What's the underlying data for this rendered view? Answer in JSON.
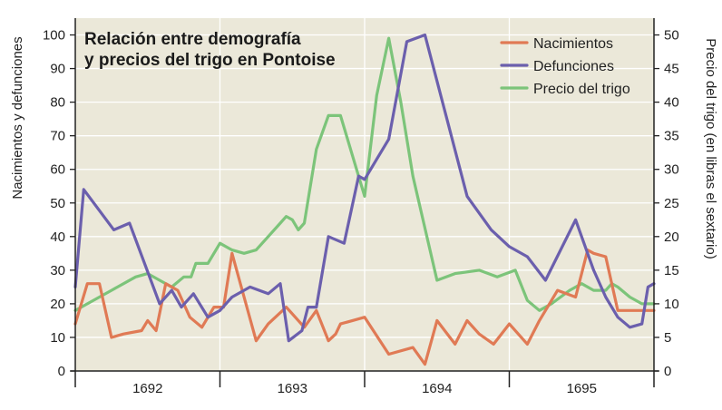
{
  "chart_data": {
    "type": "line",
    "title_lines": [
      "Relación entre demografía",
      "y precios del trigo en Pontoise"
    ],
    "ylabel_left": "Nacimientos y defunciones",
    "ylabel_right": "Precio del trigo (en libras el sextario)",
    "ylim_left": [
      0,
      105
    ],
    "ylim_right": [
      0,
      52.5
    ],
    "yticks_left": [
      0,
      10,
      20,
      30,
      40,
      50,
      60,
      70,
      80,
      90,
      100
    ],
    "yticks_right": [
      0,
      5,
      10,
      15,
      20,
      25,
      30,
      35,
      40,
      45,
      50
    ],
    "xlim": [
      0,
      48
    ],
    "year_labels": [
      "1692",
      "1693",
      "1694",
      "1695"
    ],
    "year_boundaries": [
      0,
      12,
      24,
      36,
      48
    ],
    "grid": true,
    "legend_position": "top-right",
    "colors": {
      "background": "#ebe8d9",
      "grid": "#ffffff",
      "births": "#e07a55",
      "deaths": "#6b5fad",
      "wheat": "#7cc47a"
    },
    "series": [
      {
        "name": "Nacimientos",
        "axis": "left",
        "color": "#e07a55",
        "x": [
          0,
          1,
          2,
          3,
          4,
          5.5,
          6,
          6.7,
          7.5,
          8.5,
          9.5,
          10.5,
          11.5,
          12.3,
          13,
          14,
          15,
          16,
          17.5,
          19,
          20,
          21,
          21.6,
          22,
          23,
          24,
          26,
          28,
          29,
          30,
          31.5,
          32.5,
          33.5,
          34.7,
          36,
          37.5,
          38.5,
          40,
          41.5,
          42.5,
          43,
          44,
          45,
          46,
          47,
          48
        ],
        "y": [
          14,
          26,
          26,
          10,
          11,
          12,
          15,
          12,
          26,
          24,
          16,
          13,
          19,
          19,
          35,
          22,
          9,
          14,
          19,
          13,
          18,
          9,
          11,
          14,
          15,
          16,
          5,
          7,
          2,
          15,
          8,
          15,
          11,
          8,
          14,
          8,
          15,
          24,
          22,
          36,
          35,
          34,
          18,
          18,
          18,
          18
        ]
      },
      {
        "name": "Defunciones",
        "axis": "left",
        "color": "#6b5fad",
        "x": [
          0,
          0.7,
          3.2,
          4.5,
          7,
          8,
          8.8,
          9.8,
          11,
          12,
          13,
          14.5,
          16,
          17,
          17.7,
          18.8,
          19.3,
          20,
          21,
          22.3,
          23.5,
          24,
          25,
          26,
          27.5,
          29,
          32.5,
          34.5,
          36,
          37.5,
          39,
          41.5,
          43,
          44,
          45,
          46,
          47,
          47.5,
          48
        ],
        "y": [
          25,
          54,
          42,
          44,
          20,
          24,
          19,
          23,
          16,
          18,
          22,
          25,
          23,
          26,
          9,
          12,
          19,
          19,
          40,
          38,
          58,
          57,
          63,
          69,
          98,
          100,
          52,
          42,
          37,
          34,
          27,
          45,
          30,
          22,
          16,
          13,
          14,
          25,
          26
        ]
      },
      {
        "name": "Precio del trigo",
        "axis": "right",
        "color": "#7cc47a",
        "x": [
          0,
          1,
          3,
          5,
          6,
          7,
          8,
          9,
          9.6,
          10,
          11,
          12,
          13,
          14,
          15,
          16,
          17,
          17.5,
          18,
          18.5,
          19,
          20,
          21,
          22,
          23,
          24,
          25,
          26,
          27,
          28,
          30,
          31.5,
          33.5,
          35,
          36.5,
          37.5,
          38.5,
          39.5,
          41,
          42,
          43,
          44,
          44.5,
          45,
          46,
          47,
          47.5,
          48
        ],
        "y": [
          9,
          10,
          12,
          14,
          14.5,
          13.5,
          12.5,
          14,
          14,
          16,
          16,
          19,
          18,
          17.5,
          18,
          20,
          22,
          23,
          22.5,
          21,
          22,
          33,
          38,
          38,
          32,
          26,
          41,
          49.5,
          40,
          29,
          13.5,
          14.5,
          15,
          14,
          15,
          10.5,
          9,
          10,
          12,
          13,
          12,
          12,
          13,
          12.5,
          11,
          10,
          10,
          10
        ]
      }
    ]
  }
}
